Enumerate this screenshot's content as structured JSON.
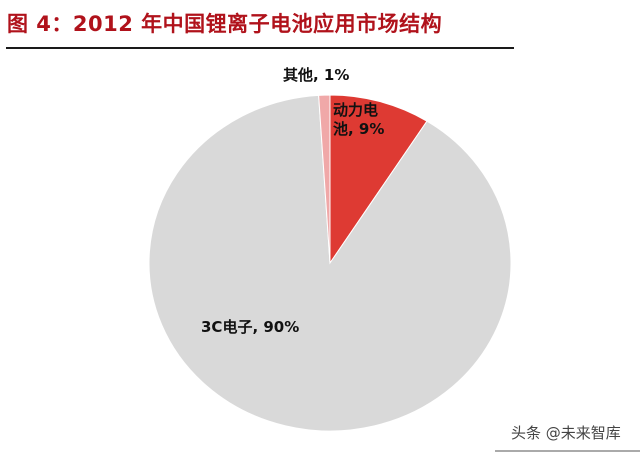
{
  "header": {
    "title": "图 4：2012 年中国锂离子电池应用市场结构"
  },
  "chart_data": {
    "type": "pie",
    "title": "2012 年中国锂离子电池应用市场结构",
    "categories": [
      "动力电池",
      "3C电子",
      "其他"
    ],
    "values": [
      9,
      90,
      1
    ],
    "colors": [
      "#de3a33",
      "#d9d9d9",
      "#f0a8a8"
    ],
    "start_angle_deg": 0,
    "direction": "clockwise",
    "labels": [
      {
        "line1": "动力电",
        "line2": "池, 9%"
      },
      {
        "text": "3C电子, 90%"
      },
      {
        "text": "其他, 1%"
      }
    ],
    "legend": "none"
  },
  "watermark": {
    "text": "头条 @未来智库"
  }
}
